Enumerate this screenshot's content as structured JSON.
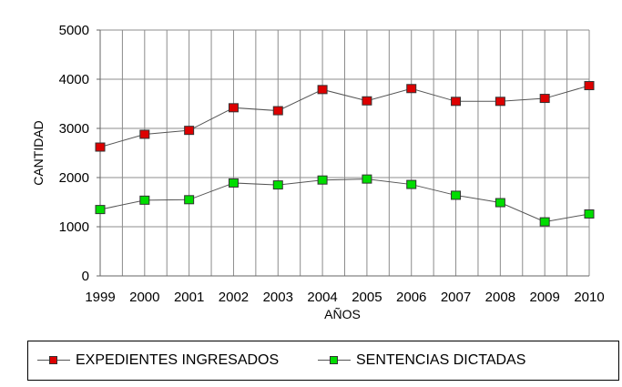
{
  "chart_data": {
    "type": "line",
    "title": "",
    "xlabel": "AÑOS",
    "ylabel": "CANTIDAD",
    "ylim": [
      0,
      5000
    ],
    "yticks": [
      "0",
      "1000",
      "2000",
      "3000",
      "4000",
      "5000"
    ],
    "x": [
      "1999",
      "2000",
      "2001",
      "2002",
      "2003",
      "2004",
      "2005",
      "2006",
      "2007",
      "2008",
      "2009",
      "2010"
    ],
    "grid": true,
    "legend_position": "bottom",
    "series": [
      {
        "name": "EXPEDIENTES INGRESADOS",
        "color": "#dd0000",
        "values": [
          2620,
          2880,
          2960,
          3420,
          3360,
          3790,
          3560,
          3810,
          3550,
          3550,
          3610,
          3870
        ]
      },
      {
        "name": "SENTENCIAS DICTADAS",
        "color": "#00dd00",
        "values": [
          1350,
          1540,
          1550,
          1890,
          1850,
          1950,
          1970,
          1860,
          1640,
          1490,
          1100,
          1260
        ]
      }
    ]
  }
}
